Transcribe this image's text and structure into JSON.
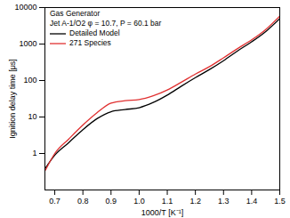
{
  "chart_data": {
    "type": "line",
    "x_label": "1000/T [K⁻¹]",
    "y_label": "Ignition delay time [μs]",
    "annotations": [
      "Gas Generator",
      "Jet A-1/O2 φ = 10.7, P = 60.1 bar"
    ],
    "log": "y",
    "legend": "upper left",
    "grid": false,
    "xlim": [
      0.665,
      1.5
    ],
    "ylim": [
      0.1,
      10000
    ],
    "xticks": [
      0.7,
      0.8,
      0.9,
      {
        "value": 1,
        "label": "1.0"
      },
      1.1,
      1.2,
      1.3,
      1.4,
      1.5
    ],
    "yticks": [
      1,
      10,
      100,
      1000,
      10000
    ],
    "x": [
      0.667,
      0.7,
      0.75,
      0.8,
      0.85,
      0.9,
      0.95,
      1.0,
      1.05,
      1.1,
      1.15,
      1.2,
      1.25,
      1.3,
      1.35,
      1.4,
      1.45,
      1.5
    ],
    "series": [
      {
        "name": "Detailed Model",
        "color": "#000000",
        "line_style": "solid",
        "values": [
          0.4,
          0.9,
          2,
          4.5,
          9,
          14,
          16,
          18,
          25,
          40,
          70,
          120,
          200,
          350,
          650,
          1150,
          2200,
          5000
        ]
      },
      {
        "name": "271 Species",
        "color": "#e03030",
        "line_style": "solid",
        "values": [
          0.35,
          1.0,
          2.5,
          6,
          13,
          24,
          28,
          30,
          38,
          55,
          90,
          150,
          240,
          420,
          750,
          1300,
          2500,
          5800
        ]
      }
    ]
  }
}
